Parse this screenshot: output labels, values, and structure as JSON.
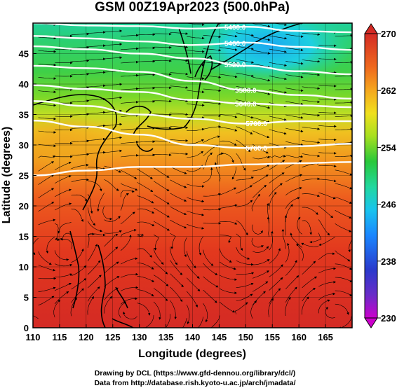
{
  "title": "GSM 00Z19Apr2023 (500.0hPa)",
  "axes": {
    "xlabel": "Longitude (degrees)",
    "ylabel": "Latitude (degrees)",
    "xlim": [
      110,
      170
    ],
    "ylim": [
      0,
      50
    ],
    "xticks": [
      110,
      115,
      120,
      125,
      130,
      135,
      140,
      145,
      150,
      155,
      160,
      165
    ],
    "yticks": [
      0,
      5,
      10,
      15,
      20,
      25,
      30,
      35,
      40,
      45
    ]
  },
  "colorbar": {
    "range": [
      230,
      270
    ],
    "ticks": [
      270,
      262,
      254,
      246,
      238,
      230
    ],
    "colors": [
      "#cc00cc",
      "#6a2cc8",
      "#2a3acc",
      "#1a86ff",
      "#19c4ee",
      "#21d8a0",
      "#28c83a",
      "#a8e020",
      "#f0e01e",
      "#f5a81e",
      "#ef6a1e",
      "#e23a1e",
      "#d42a24"
    ]
  },
  "contours": [
    {
      "label": "5400.0",
      "lat": [
        50.0,
        49.6,
        49.5,
        49.1,
        49.4,
        48.7,
        48.5
      ]
    },
    {
      "label": "5460.0",
      "lat": [
        47.9,
        47.5,
        47.0,
        46.4,
        46.8,
        46.1,
        45.6
      ]
    },
    {
      "label": "5520.0",
      "lat": [
        46.2,
        45.7,
        45.0,
        44.2,
        43.0,
        42.1,
        41.6
      ]
    },
    {
      "label": "5580.0",
      "lat": [
        43.0,
        42.6,
        42.0,
        40.5,
        39.0,
        38.2,
        37.6
      ]
    },
    {
      "label": "5640.0",
      "lat": [
        39.8,
        39.2,
        38.7,
        37.4,
        36.8,
        36.5,
        36.2
      ]
    },
    {
      "label": "5700.0",
      "lat": [
        37.2,
        36.4,
        35.0,
        34.3,
        33.5,
        33.9,
        33.9
      ]
    },
    {
      "label": "5760.0",
      "lat": [
        34.0,
        33.0,
        31.7,
        30.0,
        29.5,
        29.8,
        30.2
      ]
    },
    {
      "label": "5820.0",
      "lat": [
        25.0,
        25.8,
        26.4,
        26.4,
        26.8,
        27.0,
        27.2
      ]
    }
  ],
  "contour_lon": [
    110,
    120,
    130,
    140,
    150,
    160,
    170
  ],
  "labels": [
    "5400.0",
    "5460.0",
    "5520.0",
    "5580.0",
    "5640.0",
    "5700.0",
    "5760.0"
  ],
  "footer": {
    "line1": "Drawing by DCL (https://www.gfd-dennou.org/library/dcl/)",
    "line2": "Data from http://database.rish.kyoto-u.ac.jp/arch/jmadata/"
  }
}
